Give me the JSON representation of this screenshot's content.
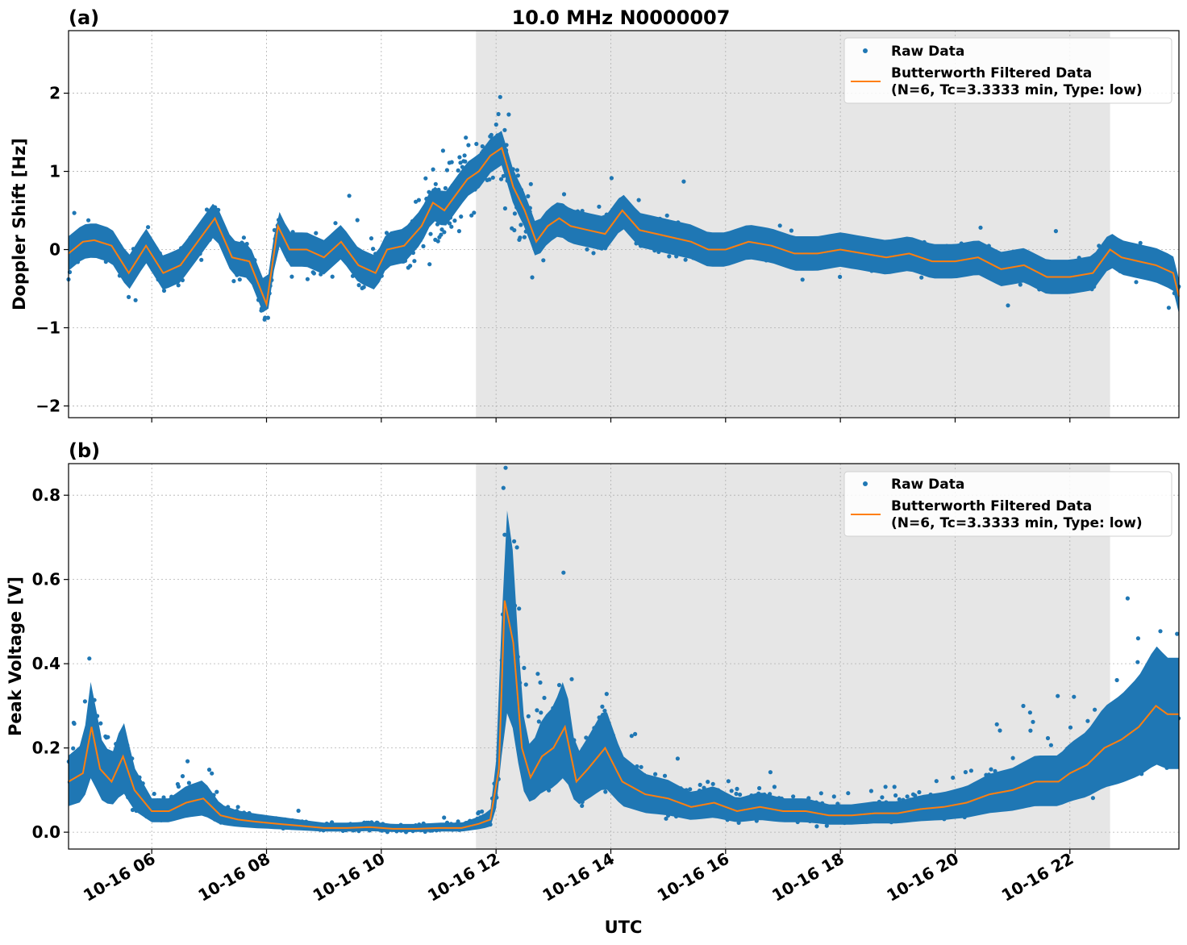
{
  "figure": {
    "title": "10.0 MHz N0000007",
    "xlabel": "UTC"
  },
  "chart_data": [
    {
      "type": "scatter",
      "panel_label": "(a)",
      "ylabel": "Doppler Shift [Hz]",
      "xlim_hours": [
        4.55,
        23.9
      ],
      "ylim": [
        -2.15,
        2.8
      ],
      "yticks": [
        -2,
        -1,
        0,
        1,
        2
      ],
      "ytick_labels": [
        "−2",
        "−1",
        "0",
        "1",
        "2"
      ],
      "xticks_hours": [
        6,
        8,
        10,
        12,
        14,
        16,
        18,
        20,
        22
      ],
      "xtick_labels": [
        "10-16 06",
        "10-16 08",
        "10-16 10",
        "10-16 12",
        "10-16 14",
        "10-16 16",
        "10-16 18",
        "10-16 20",
        "10-16 22"
      ],
      "grid": true,
      "shaded_span_hours": [
        11.65,
        22.7
      ],
      "legend": {
        "position": "upper-right",
        "entries": [
          "Raw Data",
          "Butterworth Filtered Data",
          "(N=6, Tc=3.3333 min, Type: low)"
        ]
      },
      "series": [
        {
          "name": "Raw Data",
          "kind": "scatter",
          "color": "#1f77b4"
        },
        {
          "name": "Butterworth Filtered Data",
          "kind": "line",
          "color": "#ff7f0e",
          "x_hours": [
            4.55,
            4.8,
            5.0,
            5.3,
            5.6,
            5.9,
            6.2,
            6.5,
            6.8,
            7.1,
            7.4,
            7.7,
            8.0,
            8.2,
            8.4,
            8.7,
            9.0,
            9.3,
            9.6,
            9.9,
            10.1,
            10.4,
            10.7,
            10.9,
            11.1,
            11.3,
            11.5,
            11.7,
            11.9,
            12.1,
            12.3,
            12.5,
            12.7,
            12.9,
            13.1,
            13.3,
            13.6,
            13.9,
            14.2,
            14.5,
            14.8,
            15.1,
            15.4,
            15.7,
            16.0,
            16.4,
            16.8,
            17.2,
            17.6,
            18.0,
            18.4,
            18.8,
            19.2,
            19.6,
            20.0,
            20.4,
            20.8,
            21.2,
            21.6,
            22.0,
            22.4,
            22.7,
            22.9,
            23.2,
            23.5,
            23.8,
            23.9
          ],
          "values": [
            -0.05,
            0.1,
            0.12,
            0.05,
            -0.3,
            0.05,
            -0.3,
            -0.2,
            0.1,
            0.4,
            -0.1,
            -0.15,
            -0.7,
            0.3,
            0.0,
            0.0,
            -0.1,
            0.1,
            -0.2,
            -0.3,
            0.0,
            0.05,
            0.3,
            0.6,
            0.5,
            0.7,
            0.9,
            1.0,
            1.2,
            1.3,
            0.8,
            0.5,
            0.1,
            0.3,
            0.4,
            0.3,
            0.25,
            0.2,
            0.5,
            0.25,
            0.2,
            0.15,
            0.1,
            0.0,
            0.0,
            0.1,
            0.05,
            -0.05,
            -0.05,
            0.0,
            -0.05,
            -0.1,
            -0.05,
            -0.15,
            -0.15,
            -0.1,
            -0.25,
            -0.2,
            -0.35,
            -0.35,
            -0.3,
            0.0,
            -0.1,
            -0.15,
            -0.2,
            -0.3,
            -0.6
          ]
        }
      ]
    },
    {
      "type": "scatter",
      "panel_label": "(b)",
      "ylabel": "Peak Voltage [V]",
      "xlim_hours": [
        4.55,
        23.9
      ],
      "ylim": [
        -0.04,
        0.875
      ],
      "yticks": [
        0.0,
        0.2,
        0.4,
        0.6,
        0.8
      ],
      "ytick_labels": [
        "0.0",
        "0.2",
        "0.4",
        "0.6",
        "0.8"
      ],
      "xticks_hours": [
        6,
        8,
        10,
        12,
        14,
        16,
        18,
        20,
        22
      ],
      "xtick_labels": [
        "10-16 06",
        "10-16 08",
        "10-16 10",
        "10-16 12",
        "10-16 14",
        "10-16 16",
        "10-16 18",
        "10-16 20",
        "10-16 22"
      ],
      "grid": true,
      "shaded_span_hours": [
        11.65,
        22.7
      ],
      "legend": {
        "position": "upper-right",
        "entries": [
          "Raw Data",
          "Butterworth Filtered Data",
          "(N=6, Tc=3.3333 min, Type: low)"
        ]
      },
      "series": [
        {
          "name": "Raw Data",
          "kind": "scatter",
          "color": "#1f77b4"
        },
        {
          "name": "Butterworth Filtered Data",
          "kind": "line",
          "color": "#ff7f0e",
          "x_hours": [
            4.55,
            4.8,
            4.95,
            5.1,
            5.3,
            5.5,
            5.7,
            6.0,
            6.3,
            6.6,
            6.9,
            7.2,
            7.5,
            7.8,
            8.2,
            8.6,
            9.0,
            9.4,
            9.8,
            10.2,
            10.6,
            11.0,
            11.4,
            11.7,
            11.9,
            12.05,
            12.15,
            12.3,
            12.45,
            12.6,
            12.8,
            13.0,
            13.2,
            13.4,
            13.6,
            13.9,
            14.2,
            14.6,
            15.0,
            15.4,
            15.8,
            16.2,
            16.6,
            17.0,
            17.4,
            17.8,
            18.2,
            18.6,
            19.0,
            19.4,
            19.8,
            20.2,
            20.6,
            21.0,
            21.4,
            21.8,
            22.0,
            22.3,
            22.6,
            22.9,
            23.2,
            23.5,
            23.7,
            23.9
          ],
          "values": [
            0.12,
            0.14,
            0.25,
            0.15,
            0.12,
            0.18,
            0.1,
            0.05,
            0.05,
            0.07,
            0.08,
            0.04,
            0.03,
            0.025,
            0.02,
            0.015,
            0.01,
            0.01,
            0.012,
            0.008,
            0.008,
            0.01,
            0.01,
            0.02,
            0.03,
            0.15,
            0.55,
            0.45,
            0.2,
            0.13,
            0.18,
            0.2,
            0.25,
            0.12,
            0.15,
            0.2,
            0.12,
            0.09,
            0.08,
            0.06,
            0.07,
            0.05,
            0.06,
            0.05,
            0.05,
            0.04,
            0.04,
            0.045,
            0.045,
            0.055,
            0.06,
            0.07,
            0.09,
            0.1,
            0.12,
            0.12,
            0.14,
            0.16,
            0.2,
            0.22,
            0.25,
            0.3,
            0.28,
            0.28
          ]
        }
      ]
    }
  ]
}
